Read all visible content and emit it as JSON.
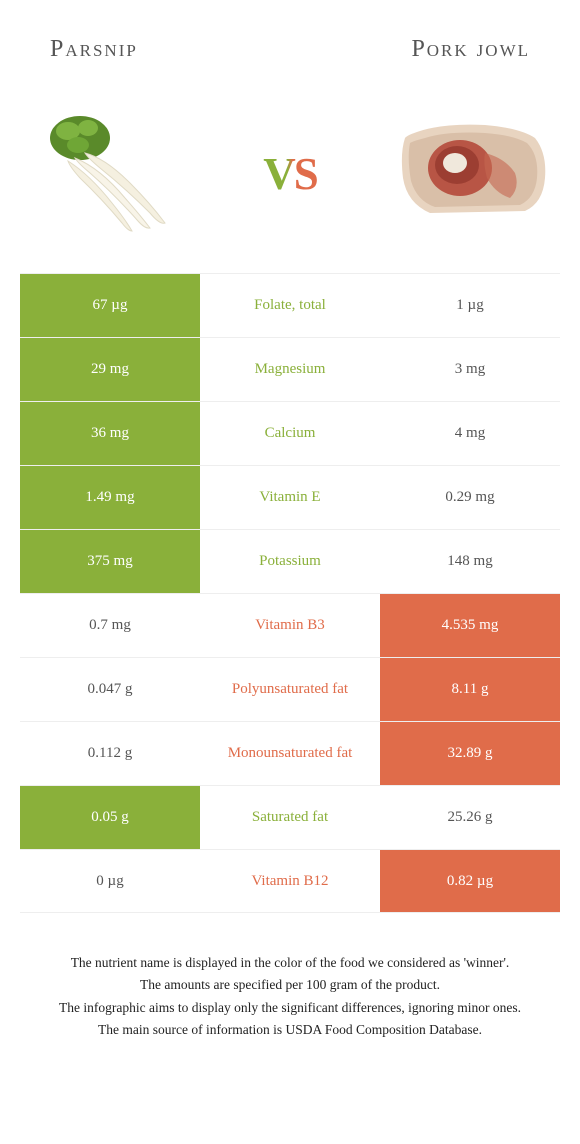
{
  "colors": {
    "left": "#8ab03a",
    "right": "#e06c4a",
    "neutral_text": "#555555"
  },
  "header": {
    "left_title": "Parsnip",
    "right_title": "Pork jowl",
    "vs": "vs"
  },
  "table": {
    "rows": [
      {
        "left": "67 µg",
        "label": "Folate, total",
        "right": "1 µg",
        "winner": "left"
      },
      {
        "left": "29 mg",
        "label": "Magnesium",
        "right": "3 mg",
        "winner": "left"
      },
      {
        "left": "36 mg",
        "label": "Calcium",
        "right": "4 mg",
        "winner": "left"
      },
      {
        "left": "1.49 mg",
        "label": "Vitamin E",
        "right": "0.29 mg",
        "winner": "left"
      },
      {
        "left": "375 mg",
        "label": "Potassium",
        "right": "148 mg",
        "winner": "left"
      },
      {
        "left": "0.7 mg",
        "label": "Vitamin B3",
        "right": "4.535 mg",
        "winner": "right"
      },
      {
        "left": "0.047 g",
        "label": "Polyunsaturated fat",
        "right": "8.11 g",
        "winner": "right"
      },
      {
        "left": "0.112 g",
        "label": "Monounsaturated fat",
        "right": "32.89 g",
        "winner": "right"
      },
      {
        "left": "0.05 g",
        "label": "Saturated fat",
        "right": "25.26 g",
        "winner": "left"
      },
      {
        "left": "0 µg",
        "label": "Vitamin B12",
        "right": "0.82 µg",
        "winner": "right"
      }
    ]
  },
  "footnotes": [
    "The nutrient name is displayed in the color of the food we considered as 'winner'.",
    "The amounts are specified per 100 gram of the product.",
    "The infographic aims to display only the significant differences, ignoring minor ones.",
    "The main source of information is USDA Food Composition Database."
  ]
}
